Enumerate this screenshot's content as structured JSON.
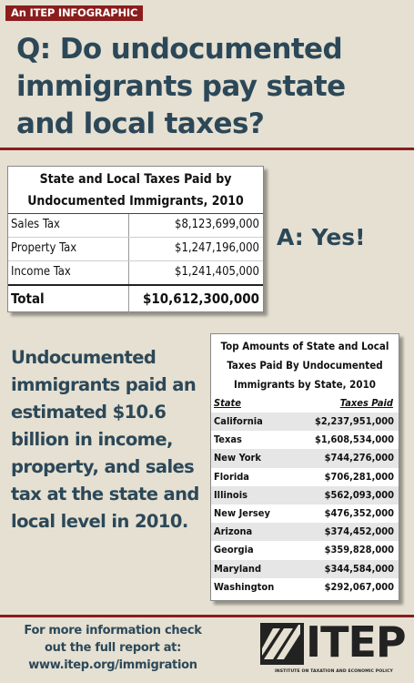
{
  "header": {
    "tag": "An ITEP INFOGRAPHIC",
    "question": "Q: Do undocumented immigrants pay state and local taxes?"
  },
  "table_totals": {
    "title": "State and Local Taxes Paid by Undocumented Immigrants, 2010",
    "rows": [
      {
        "category": "Sales Tax",
        "amount": "$8,123,699,000"
      },
      {
        "category": "Property Tax",
        "amount": "$1,247,196,000"
      },
      {
        "category": "Income Tax",
        "amount": "$1,241,405,000"
      }
    ],
    "total": {
      "category": "Total",
      "amount": "$10,612,300,000"
    }
  },
  "answer": "A: Yes!",
  "summary": "Undocumented immigrants paid an estimated $10.6 billion in income, property, and sales tax at the state and local level in 2010.",
  "table_states": {
    "title": "Top Amounts of State and Local Taxes Paid By Undocumented Immigrants by State, 2010",
    "col_state": "State",
    "col_taxes": "Taxes Paid",
    "rows": [
      {
        "state": "California",
        "taxes": "$2,237,951,000"
      },
      {
        "state": "Texas",
        "taxes": "$1,608,534,000"
      },
      {
        "state": "New York",
        "taxes": "$744,276,000"
      },
      {
        "state": "Florida",
        "taxes": "$706,281,000"
      },
      {
        "state": "Illinois",
        "taxes": "$562,093,000"
      },
      {
        "state": "New Jersey",
        "taxes": "$476,352,000"
      },
      {
        "state": "Arizona",
        "taxes": "$374,452,000"
      },
      {
        "state": "Georgia",
        "taxes": "$359,828,000"
      },
      {
        "state": "Maryland",
        "taxes": "$344,584,000"
      },
      {
        "state": "Washington",
        "taxes": "$292,067,000"
      }
    ]
  },
  "footer": {
    "line1": "For more information check",
    "line2": "out the full report at:",
    "url": "www.itep.org/immigration"
  },
  "logo": {
    "wordmark": "ITEP",
    "subtitle": "INSTITUTE ON TAXATION AND ECONOMIC POLICY"
  },
  "colors": {
    "background": "#e5e0d2",
    "accent_red": "#8c1d1d",
    "headline_blue": "#2c4858"
  }
}
